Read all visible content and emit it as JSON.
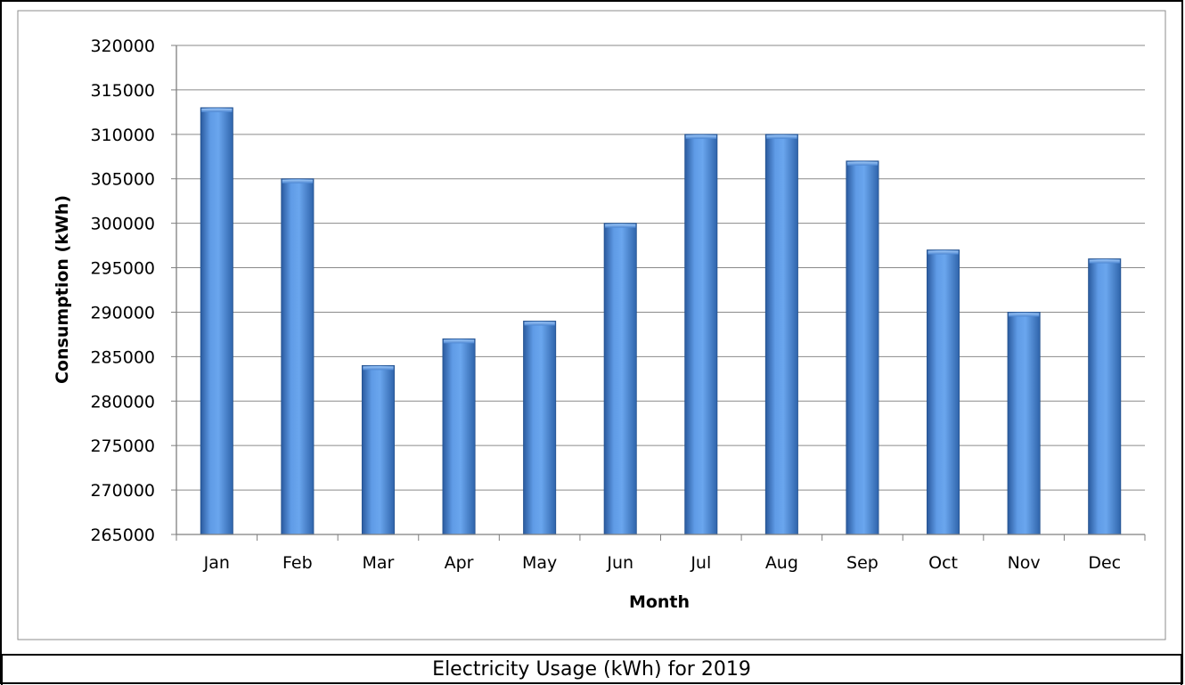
{
  "chart_data": {
    "type": "bar",
    "title": "",
    "caption": "Electricity Usage (kWh) for 2019",
    "xlabel": "Month",
    "ylabel": "Consumption (kWh)",
    "categories": [
      "Jan",
      "Feb",
      "Mar",
      "Apr",
      "May",
      "Jun",
      "Jul",
      "Aug",
      "Sep",
      "Oct",
      "Nov",
      "Dec"
    ],
    "values": [
      313000,
      305000,
      284000,
      287000,
      289000,
      300000,
      310000,
      310000,
      307000,
      297000,
      290000,
      296000
    ],
    "ylim": [
      265000,
      320000
    ],
    "yticks": [
      "265000",
      "270000",
      "275000",
      "280000",
      "285000",
      "290000",
      "295000",
      "300000",
      "305000",
      "310000",
      "315000",
      "320000"
    ],
    "grid": "horizontal",
    "legend": "none",
    "colors": {
      "bar": "#3a77cc",
      "bar_light": "#6aa6ee",
      "bar_dark": "#2a5a9e",
      "gridline": "#8a8a8a",
      "axis": "#7f7f7f",
      "border": "#000000",
      "inner_border": "#8c8c8c"
    }
  }
}
